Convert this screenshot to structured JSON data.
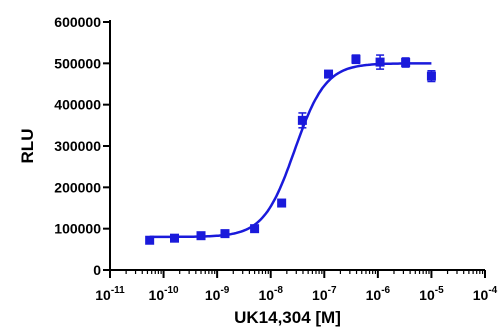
{
  "chart_data": {
    "type": "scatter",
    "title": "",
    "xlabel": "UK14,304 [M]",
    "ylabel": "RLU",
    "x_scale": "log",
    "xlim": [
      1e-11,
      0.0001
    ],
    "ylim": [
      0,
      600000
    ],
    "x_tick_labels": [
      {
        "base": "10",
        "exp": "-11"
      },
      {
        "base": "10",
        "exp": "-10"
      },
      {
        "base": "10",
        "exp": "-9"
      },
      {
        "base": "10",
        "exp": "-8"
      },
      {
        "base": "10",
        "exp": "-7"
      },
      {
        "base": "10",
        "exp": "-6"
      },
      {
        "base": "10",
        "exp": "-5"
      },
      {
        "base": "10",
        "exp": "-4"
      }
    ],
    "y_tick_labels": [
      "0",
      "100000",
      "200000",
      "300000",
      "400000",
      "500000",
      "600000"
    ],
    "grid": false,
    "legend": "none",
    "color": "#1a1adb",
    "series": [
      {
        "points": [
          {
            "x": 5.5e-11,
            "y": 72000,
            "err": 6000
          },
          {
            "x": 1.6e-10,
            "y": 77000,
            "err": 5000
          },
          {
            "x": 5e-10,
            "y": 83000,
            "err": 6000
          },
          {
            "x": 1.4e-09,
            "y": 88000,
            "err": 5000
          },
          {
            "x": 5e-09,
            "y": 100000,
            "err": 5000
          },
          {
            "x": 1.6e-08,
            "y": 162000,
            "err": 8000
          },
          {
            "x": 3.9e-08,
            "y": 362000,
            "err": 18000
          },
          {
            "x": 1.2e-07,
            "y": 474000,
            "err": 6000
          },
          {
            "x": 3.9e-07,
            "y": 510000,
            "err": 10000
          },
          {
            "x": 1.1e-06,
            "y": 503000,
            "err": 17000
          },
          {
            "x": 3.3e-06,
            "y": 502000,
            "err": 11000
          },
          {
            "x": 1e-05,
            "y": 469000,
            "err": 13000
          }
        ],
        "fit": {
          "model": "sigmoidal dose-response",
          "bottom": 80000,
          "top": 500000,
          "ec50": 2.8e-08,
          "hill": 1.5
        }
      }
    ]
  }
}
